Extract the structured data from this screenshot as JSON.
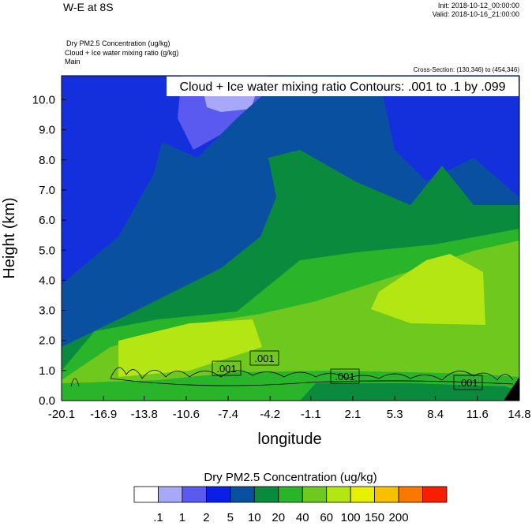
{
  "chart_data": {
    "type": "contour",
    "title": "W-E at 8S",
    "init": "Init: 2018-10-12_00:00:00",
    "valid": "Valid: 2018-10-16_21:00:00",
    "fields": [
      "Dry PM2.5 Concentration   (ug/kg)",
      "Cloud + Ice water mixing ratio   (g/kg)",
      "Main"
    ],
    "cross_section": "Cross-Section: (130,346) to (454,346)",
    "contour_note": "Cloud + Ice water mixing ratio Contours: .001 to .1 by .099",
    "contour_labels": [
      ".001",
      ".001",
      ".001",
      ".001"
    ],
    "xlabel": "longitude",
    "ylabel": "Height (km)",
    "xlim": [
      -20.1,
      14.8
    ],
    "xticks": [
      -20.1,
      -16.9,
      -13.8,
      -10.6,
      -7.4,
      -4.2,
      -1.1,
      2.1,
      5.3,
      8.4,
      11.6,
      14.8
    ],
    "ylim": [
      0,
      10.8
    ],
    "yticks": [
      {
        "value": 0,
        "label": "0.0"
      },
      {
        "value": 1,
        "label": "1.0"
      },
      {
        "value": 2,
        "label": "2.0"
      },
      {
        "value": 3,
        "label": "3.0"
      },
      {
        "value": 4,
        "label": "4.0"
      },
      {
        "value": 5,
        "label": "5.0"
      },
      {
        "value": 6,
        "label": "6.0"
      },
      {
        "value": 7,
        "label": "7.0"
      },
      {
        "value": 8,
        "label": "8.0"
      },
      {
        "value": 9,
        "label": "9.0"
      },
      {
        "value": 10,
        "label": "10.0"
      }
    ],
    "colorbar": {
      "title": "Dry PM2.5 Concentration  (ug/kg)",
      "levels": [
        {
          "value": 0.1,
          "label": ".1"
        },
        1,
        2,
        5,
        10,
        20,
        40,
        60,
        100,
        150,
        200
      ],
      "colors": [
        "#ffffff",
        "#a8a8f8",
        "#5a5af0",
        "#0a1ee6",
        "#0a50a0",
        "#0a8a3c",
        "#2ab42a",
        "#6ec81e",
        "#b4e614",
        "#e6f000",
        "#f8c000",
        "#f87800",
        "#f81e00"
      ]
    }
  }
}
